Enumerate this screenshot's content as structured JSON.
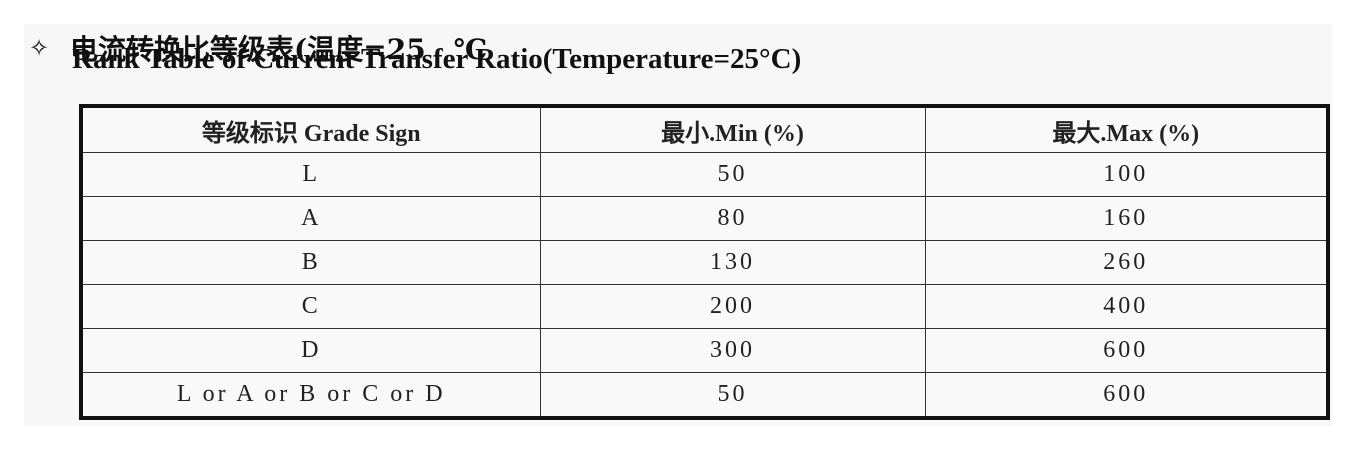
{
  "heading": {
    "bullet_icon": "diamond-outline-icon",
    "title_cn": "电流转换比等级表(温度=25　℃",
    "title_en": "Rank Table of Current Transfer Ratio(Temperature=25°C)"
  },
  "table": {
    "headers": [
      "等级标识 Grade Sign",
      "最小.Min (%)",
      "最大.Max (%)"
    ],
    "rows": [
      {
        "grade": "L",
        "min": "50",
        "max": "100"
      },
      {
        "grade": "A",
        "min": "80",
        "max": "160"
      },
      {
        "grade": "B",
        "min": "130",
        "max": "260"
      },
      {
        "grade": "C",
        "min": "200",
        "max": "400"
      },
      {
        "grade": "D",
        "min": "300",
        "max": "600"
      },
      {
        "grade": "L or A or B or C or D",
        "min": "50",
        "max": "600"
      }
    ]
  }
}
